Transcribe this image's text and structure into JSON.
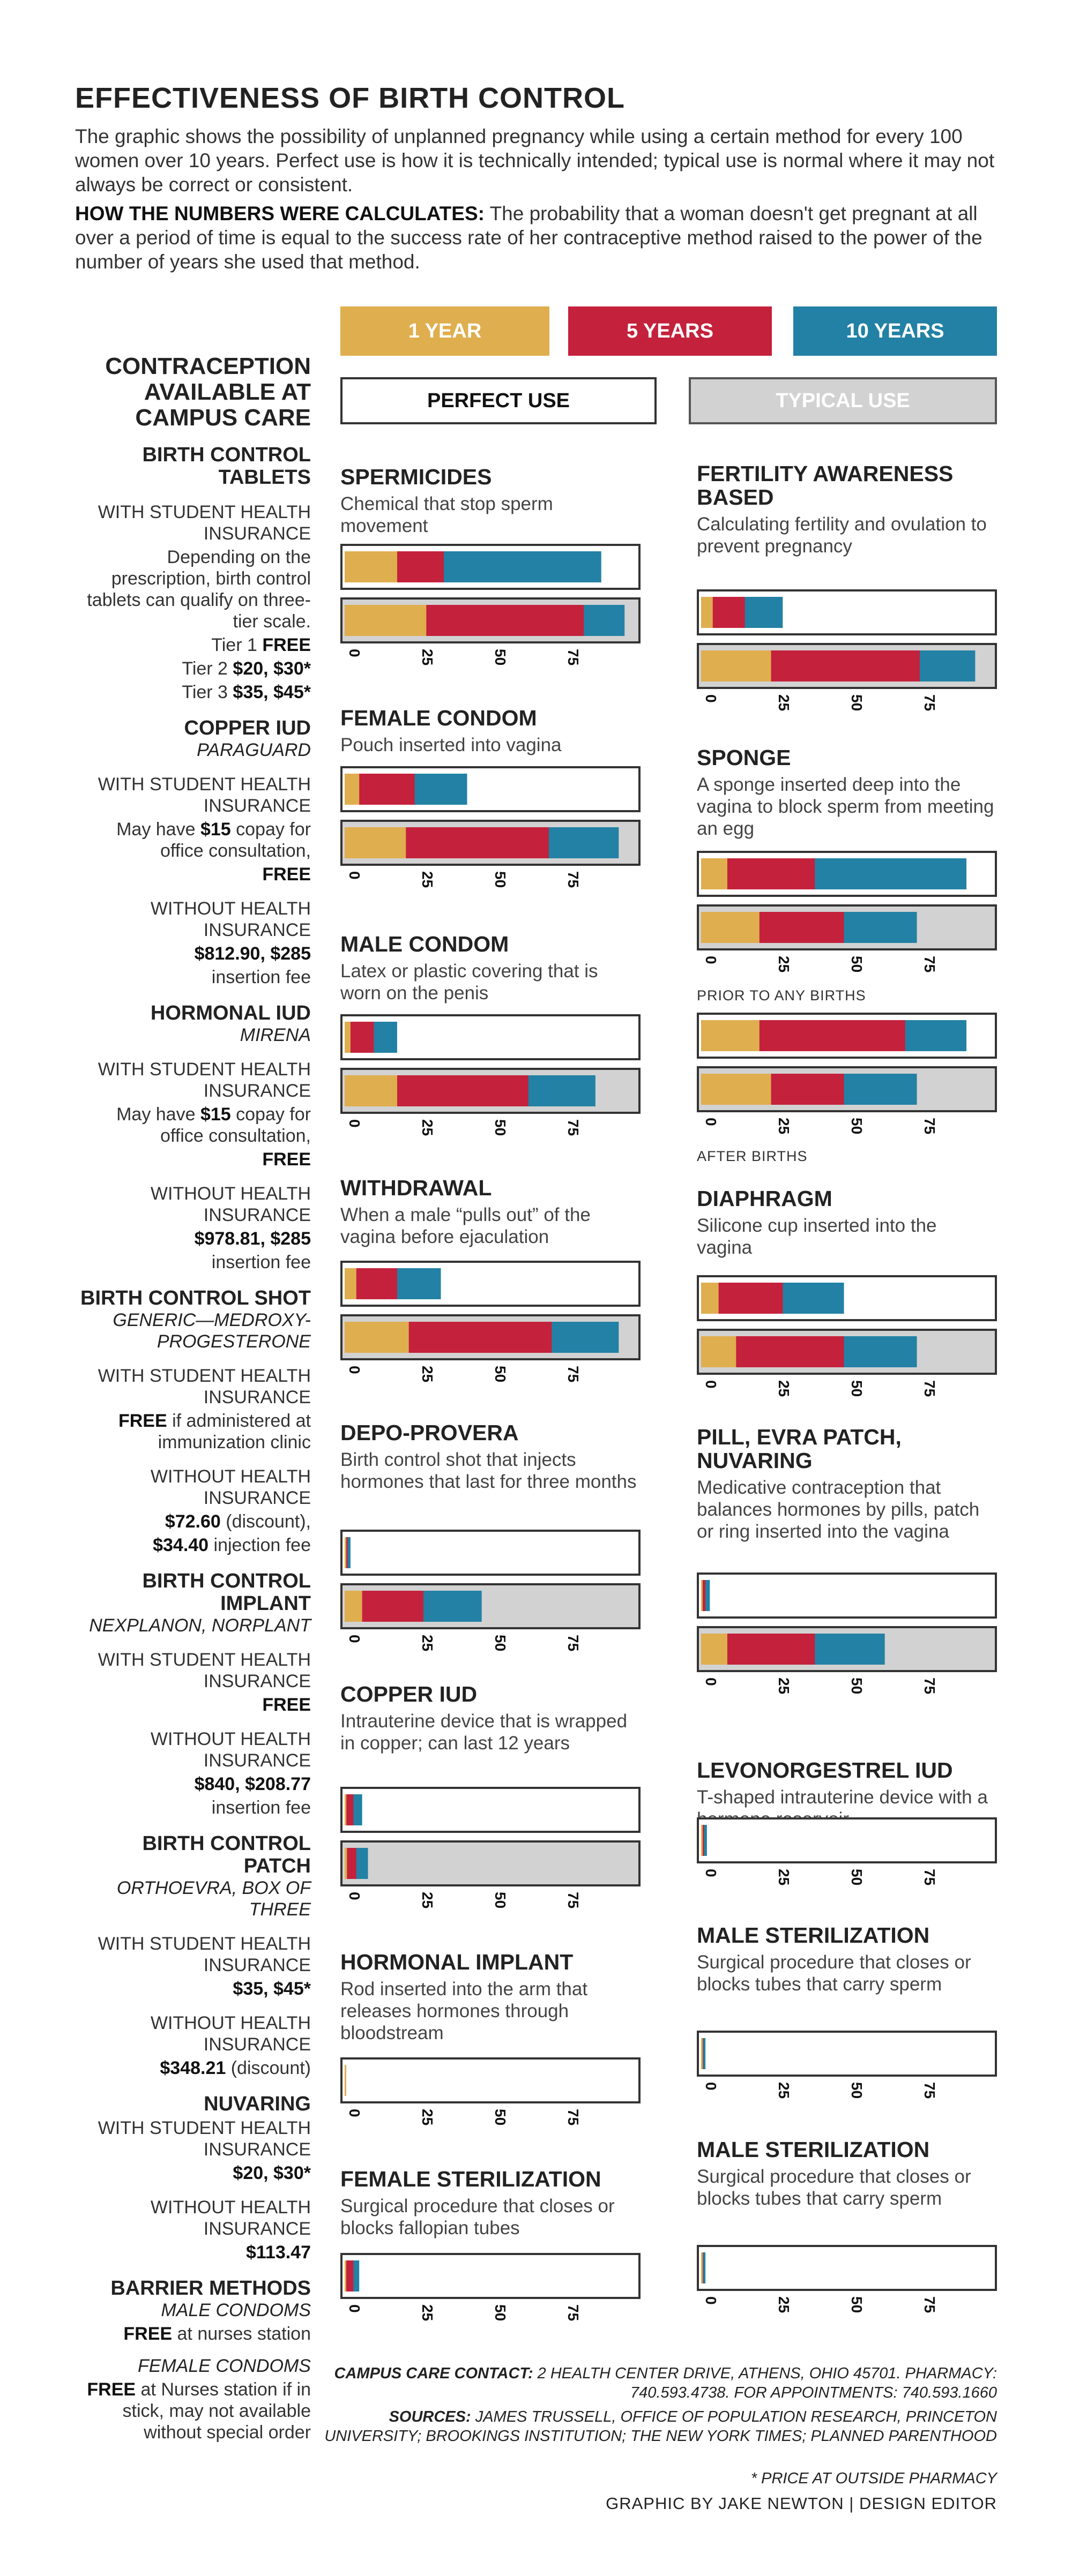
{
  "title": "EFFECTIVENESS OF BIRTH CONTROL",
  "intro": "The graphic shows the possibility of unplanned pregnancy while using a certain method for every 100 women over 10 years. Perfect use is how it is technically intended; typical use is normal where it may not always be correct or consistent.",
  "howto_label": "HOW THE NUMBERS WERE CALCULATES:",
  "howto_text": " The probability that a woman doesn't get pregnant at all over a period of time is equal to the success rate of her contraceptive method raised to the power of the number of years she used that method.",
  "legend": {
    "one_year": "1 YEAR",
    "five_years": "5 YEARS",
    "ten_years": "10 YEARS",
    "perfect": "PERFECT USE",
    "typical": "TYPICAL USE"
  },
  "colors": {
    "one_year": "#dfae4e",
    "five_years": "#c4213c",
    "ten_years": "#2281a4",
    "typical_bg": "#d2d2d2"
  },
  "sidebar": {
    "heading": "CONTRACEPTION AVAILABLE AT CAMPUS CARE",
    "tablets_title": "BIRTH CONTROL TABLETS",
    "tablets_l1": "WITH STUDENT HEALTH INSURANCE",
    "tablets_l2": "Depending on the prescription, birth control tablets can qualify on three-tier scale.",
    "tablets_t1": "Tier 1 ",
    "tablets_t1b": "FREE",
    "tablets_t2": "Tier 2 ",
    "tablets_t2b": "$20, $30*",
    "tablets_t3": "Tier 3 ",
    "tablets_t3b": "$35, $45*",
    "copper_title": "COPPER IUD",
    "copper_sub": "PARAGUARD",
    "copper_l1": "WITH STUDENT HEALTH INSURANCE",
    "copper_l2a": "May have ",
    "copper_l2b": "$15",
    "copper_l2c": " copay for office consultation,",
    "copper_l3": "FREE",
    "copper_l4": "WITHOUT HEALTH INSURANCE",
    "copper_l5": "$812.90, $285",
    "copper_l6": "insertion fee",
    "hormonal_title": "HORMONAL IUD",
    "hormonal_sub": "MIRENA",
    "hormonal_l1": "WITH STUDENT HEALTH INSURANCE",
    "hormonal_l2a": "May have ",
    "hormonal_l2b": "$15",
    "hormonal_l2c": " copay for office consultation,",
    "hormonal_l3": "FREE",
    "hormonal_l4": "WITHOUT HEALTH INSURANCE",
    "hormonal_l5": "$978.81, $285",
    "hormonal_l6": "insertion fee",
    "shot_title": "BIRTH CONTROL SHOT",
    "shot_sub": "GENERIC—MEDROXY-PROGESTERONE",
    "shot_l1": "WITH STUDENT HEALTH INSURANCE",
    "shot_l2a": "FREE",
    "shot_l2b": " if administered at immunization clinic",
    "shot_l3": "WITHOUT HEALTH INSURANCE",
    "shot_l4a": "$72.60",
    "shot_l4b": " (discount),",
    "shot_l5a": "$34.40",
    "shot_l5b": " injection fee",
    "implant_title": "BIRTH CONTROL IMPLANT",
    "implant_sub": "NEXPLANON, NORPLANT",
    "implant_l1": "WITH STUDENT HEALTH INSURANCE",
    "implant_l2": "FREE",
    "implant_l3": "WITHOUT HEALTH INSURANCE",
    "implant_l4": "$840, $208.77",
    "implant_l5": "insertion fee",
    "patch_title": "BIRTH CONTROL PATCH",
    "patch_sub": "ORTHOEVRA, BOX OF THREE",
    "patch_l1": "WITH STUDENT HEALTH INSURANCE",
    "patch_l2": "$35, $45*",
    "patch_l3": "WITHOUT HEALTH INSURANCE",
    "patch_l4a": "$348.21",
    "patch_l4b": " (discount)",
    "nuva_title": "NUVARING",
    "nuva_l1": "WITH STUDENT HEALTH INSURANCE",
    "nuva_l2": "$20, $30*",
    "nuva_l3": "WITHOUT HEALTH INSURANCE",
    "nuva_l4": "$113.47",
    "barrier_title": "BARRIER METHODS",
    "barrier_sub1": "MALE CONDOMS",
    "barrier_l1a": "FREE",
    "barrier_l1b": " at nurses station",
    "barrier_sub2": "FEMALE CONDOMS",
    "barrier_l2a": "FREE",
    "barrier_l2b": " at Nurses station if in stick, may not available without special order"
  },
  "methods": [
    {
      "name": "SPERMICIDES",
      "desc": "Chemical that stop sperm movement"
    },
    {
      "name": "FEMALE CONDOM",
      "desc": "Pouch inserted into vagina"
    },
    {
      "name": "MALE CONDOM",
      "desc": "Latex or plastic covering that is worn on the penis"
    },
    {
      "name": "WITHDRAWAL",
      "desc": "When a male “pulls out” of the vagina before ejaculation"
    },
    {
      "name": "DEPO-PROVERA",
      "desc": "Birth control shot that injects hormones that last for three months"
    },
    {
      "name": "COPPER IUD",
      "desc": "Intrauterine device that is wrapped in copper; can last 12 years"
    },
    {
      "name": "HORMONAL IMPLANT",
      "desc": "Rod inserted into the arm that releases hormones through bloodstream"
    },
    {
      "name": "FEMALE STERILIZATION",
      "desc": "Surgical procedure that closes or blocks fallopian tubes"
    },
    {
      "name": "FERTILITY AWARENESS BASED",
      "desc": "Calculating fertility and ovulation to prevent pregnancy"
    },
    {
      "name": "SPONGE",
      "desc": "A sponge inserted deep into the vagina to block sperm from meeting an egg"
    },
    {
      "name": "DIAPHRAGM",
      "desc": "Silicone cup inserted into the vagina"
    },
    {
      "name": "PILL, EVRA PATCH, NUVARING",
      "desc": "Medicative contraception that balances hormones by pills, patch or ring inserted into the vagina"
    },
    {
      "name": "LEVONORGESTREL IUD",
      "desc": "T-shaped intrauterine device with a hormone reservoir"
    },
    {
      "name": "MALE STERILIZATION",
      "desc": "Surgical procedure that closes or blocks tubes that carry sperm"
    },
    {
      "name": "MALE STERILIZATION",
      "desc": "Surgical procedure that closes or blocks tubes that carry sperm"
    }
  ],
  "sponge_notes": {
    "prior": "PRIOR TO ANY BIRTHS",
    "after": "AFTER BIRTHS"
  },
  "footer": {
    "contact_label": "CAMPUS CARE CONTACT:",
    "contact_text": " 2 HEALTH CENTER DRIVE, ATHENS, OHIO 45701. PHARMACY: 740.593.4738. FOR APPOINTMENTS: 740.593.1660",
    "sources_label": "SOURCES:",
    "sources_text": " JAMES TRUSSELL, OFFICE OF POPULATION RESEARCH, PRINCETON UNIVERSITY; BROOKINGS INSTITUTION; THE NEW YORK TIMES; PLANNED PARENTHOOD",
    "asterisk": "* PRICE AT OUTSIDE PHARMACY",
    "credit": "GRAPHIC BY JAKE NEWTON | DESIGN EDITOR"
  },
  "chart_data": {
    "type": "bar",
    "xlim": [
      0,
      100
    ],
    "ticks": [
      "0",
      "25",
      "50",
      "75",
      "100"
    ],
    "series_names": [
      "1 YEAR",
      "5 YEARS",
      "10 YEARS"
    ],
    "charts": [
      {
        "method": "SPERMICIDES",
        "rows": [
          {
            "use": "PERFECT USE",
            "values": [
              18,
              34,
              88
            ]
          },
          {
            "use": "TYPICAL USE",
            "values": [
              28,
              82,
              96
            ]
          }
        ]
      },
      {
        "method": "FEMALE CONDOM",
        "rows": [
          {
            "use": "PERFECT USE",
            "values": [
              5,
              24,
              42
            ]
          },
          {
            "use": "TYPICAL USE",
            "values": [
              21,
              70,
              94
            ]
          }
        ]
      },
      {
        "method": "MALE CONDOM",
        "rows": [
          {
            "use": "PERFECT USE",
            "values": [
              2,
              10,
              18
            ]
          },
          {
            "use": "TYPICAL USE",
            "values": [
              18,
              63,
              86
            ]
          }
        ]
      },
      {
        "method": "WITHDRAWAL",
        "rows": [
          {
            "use": "PERFECT USE",
            "values": [
              4,
              18,
              33
            ]
          },
          {
            "use": "TYPICAL USE",
            "values": [
              22,
              71,
              94
            ]
          }
        ]
      },
      {
        "method": "DEPO-PROVERA",
        "rows": [
          {
            "use": "PERFECT USE",
            "values": [
              0.2,
              1,
              2
            ]
          },
          {
            "use": "TYPICAL USE",
            "values": [
              6,
              27,
              47
            ]
          }
        ]
      },
      {
        "method": "COPPER IUD",
        "rows": [
          {
            "use": "PERFECT USE",
            "values": [
              0.6,
              3,
              6
            ]
          },
          {
            "use": "TYPICAL USE",
            "values": [
              0.8,
              4,
              8
            ]
          }
        ]
      },
      {
        "method": "HORMONAL IMPLANT",
        "rows": [
          {
            "use": "PERFECT USE",
            "values": [
              0.05,
              0.25,
              0.5
            ]
          }
        ]
      },
      {
        "method": "FEMALE STERILIZATION",
        "rows": [
          {
            "use": "PERFECT USE",
            "values": [
              0.5,
              3,
              5
            ]
          }
        ]
      },
      {
        "method": "FERTILITY AWARENESS BASED",
        "rows": [
          {
            "use": "PERFECT USE",
            "values": [
              4,
              15,
              28
            ]
          },
          {
            "use": "TYPICAL USE",
            "values": [
              24,
              75,
              94
            ]
          }
        ]
      },
      {
        "method": "SPONGE",
        "rows": [
          {
            "use": "PRIOR TO ANY BIRTHS",
            "values": [
              9,
              39,
              91
            ]
          },
          {
            "use": "PRIOR TO ANY BIRTHS",
            "values": [
              20,
              49,
              74
            ]
          },
          {
            "use": "AFTER BIRTHS",
            "values": [
              20,
              70,
              91
            ]
          },
          {
            "use": "AFTER BIRTHS",
            "values": [
              24,
              49,
              74
            ]
          }
        ]
      },
      {
        "method": "DIAPHRAGM",
        "rows": [
          {
            "use": "PERFECT USE",
            "values": [
              6,
              28,
              49
            ]
          },
          {
            "use": "TYPICAL USE",
            "values": [
              12,
              49,
              74
            ]
          }
        ]
      },
      {
        "method": "PILL, EVRA PATCH, NUVARING",
        "rows": [
          {
            "use": "PERFECT USE",
            "values": [
              0.3,
              1.5,
              3
            ]
          },
          {
            "use": "TYPICAL USE",
            "values": [
              9,
              39,
              63
            ]
          }
        ]
      },
      {
        "method": "LEVONORGESTREL IUD",
        "rows": [
          {
            "use": "PERFECT USE",
            "values": [
              0.2,
              1,
              2
            ]
          }
        ]
      },
      {
        "method": "MALE STERILIZATION",
        "rows": [
          {
            "use": "PERFECT USE",
            "values": [
              0.15,
              0.7,
              1.5
            ]
          }
        ]
      },
      {
        "method": "MALE STERILIZATION",
        "rows": [
          {
            "use": "PERFECT USE",
            "values": [
              0.15,
              0.7,
              1.5
            ]
          }
        ]
      }
    ]
  }
}
